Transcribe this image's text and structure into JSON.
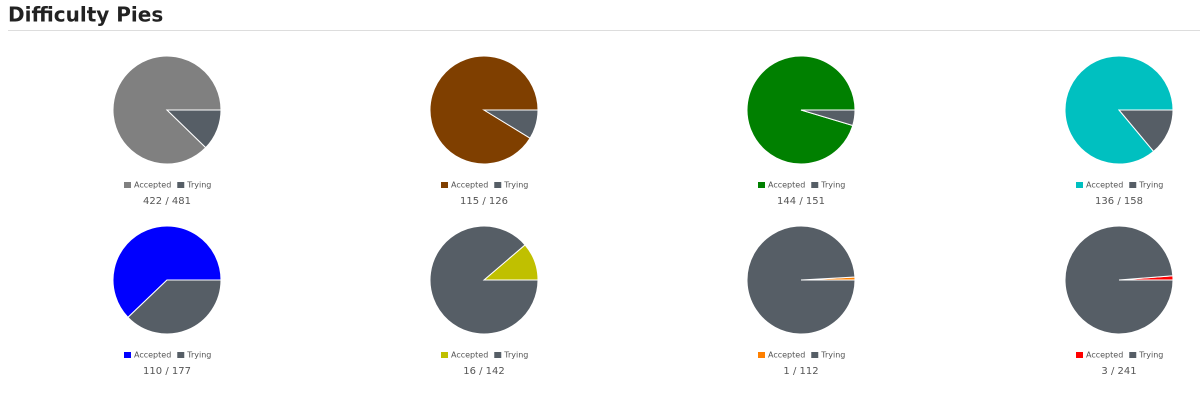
{
  "header": {
    "title": "Difficulty Pies"
  },
  "chart_data": [
    {
      "type": "pie",
      "categories": [
        "Accepted",
        "Trying"
      ],
      "values": [
        422,
        59
      ],
      "colors": [
        "#808080",
        "#565e66"
      ],
      "summary": "422 / 481"
    },
    {
      "type": "pie",
      "categories": [
        "Accepted",
        "Trying"
      ],
      "values": [
        115,
        11
      ],
      "colors": [
        "#7f3f00",
        "#565e66"
      ],
      "summary": "115 / 126"
    },
    {
      "type": "pie",
      "categories": [
        "Accepted",
        "Trying"
      ],
      "values": [
        144,
        7
      ],
      "colors": [
        "#008000",
        "#565e66"
      ],
      "summary": "144 / 151"
    },
    {
      "type": "pie",
      "categories": [
        "Accepted",
        "Trying"
      ],
      "values": [
        136,
        22
      ],
      "colors": [
        "#00c0c0",
        "#565e66"
      ],
      "summary": "136 / 158"
    },
    {
      "type": "pie",
      "categories": [
        "Accepted",
        "Trying"
      ],
      "values": [
        110,
        67
      ],
      "colors": [
        "#0000ff",
        "#565e66"
      ],
      "summary": "110 / 177"
    },
    {
      "type": "pie",
      "categories": [
        "Accepted",
        "Trying"
      ],
      "values": [
        16,
        126
      ],
      "colors": [
        "#c0c000",
        "#565e66"
      ],
      "summary": "16 / 142"
    },
    {
      "type": "pie",
      "categories": [
        "Accepted",
        "Trying"
      ],
      "values": [
        1,
        111
      ],
      "colors": [
        "#ff8000",
        "#565e66"
      ],
      "summary": "1 / 112"
    },
    {
      "type": "pie",
      "categories": [
        "Accepted",
        "Trying"
      ],
      "values": [
        3,
        238
      ],
      "colors": [
        "#ff0000",
        "#565e66"
      ],
      "summary": "3 / 241"
    }
  ]
}
